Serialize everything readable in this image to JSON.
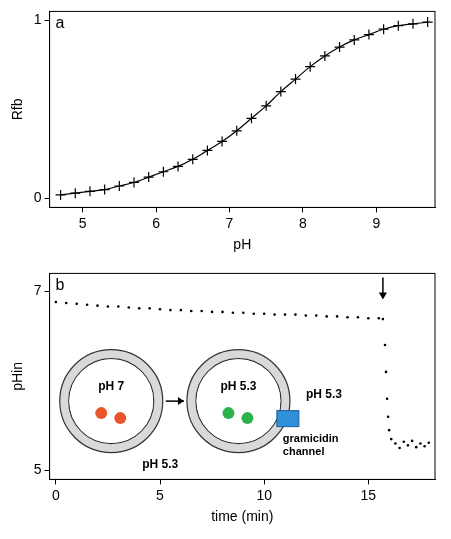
{
  "chart_data": [
    {
      "type": "line",
      "panel": "a",
      "x_label": "pH",
      "y_label": "Rfb",
      "x": [
        4.7,
        4.9,
        5.1,
        5.3,
        5.5,
        5.7,
        5.9,
        6.1,
        6.3,
        6.5,
        6.7,
        6.9,
        7.1,
        7.3,
        7.5,
        7.7,
        7.9,
        8.1,
        8.3,
        8.5,
        8.7,
        8.9,
        9.1,
        9.3,
        9.5,
        9.7
      ],
      "series": [
        {
          "color": "#000000",
          "marker": "cross",
          "line_style": "solid",
          "values": [
            0.02,
            0.03,
            0.04,
            0.05,
            0.07,
            0.09,
            0.12,
            0.15,
            0.18,
            0.22,
            0.27,
            0.32,
            0.38,
            0.45,
            0.52,
            0.6,
            0.67,
            0.74,
            0.8,
            0.85,
            0.89,
            0.92,
            0.95,
            0.97,
            0.98,
            0.99
          ]
        }
      ],
      "xlim": [
        4.55,
        9.8
      ],
      "xticks": [
        5,
        6,
        7,
        8,
        9
      ],
      "ylim": [
        -0.05,
        1.05
      ],
      "yticks": [
        0,
        1
      ],
      "grid": false
    },
    {
      "type": "scatter",
      "panel": "b",
      "x_label": "time (min)",
      "y_label": "pHin",
      "x": [
        0,
        0.5,
        1,
        1.5,
        2,
        2.5,
        3,
        3.5,
        4,
        4.5,
        5,
        5.5,
        6,
        6.5,
        7,
        7.5,
        8,
        8.5,
        9,
        9.5,
        10,
        10.5,
        11,
        11.5,
        12,
        12.5,
        13,
        13.5,
        14,
        14.5,
        15,
        15.5,
        15.7,
        15.8,
        15.85,
        15.9,
        15.95,
        16.0,
        16.1,
        16.3,
        16.5,
        16.7,
        16.9,
        17.1,
        17.3,
        17.5,
        17.7,
        17.9
      ],
      "series": [
        {
          "color": "#000000",
          "marker": "dot",
          "line_style": "none",
          "values": [
            6.88,
            6.87,
            6.86,
            6.85,
            6.84,
            6.83,
            6.83,
            6.82,
            6.81,
            6.81,
            6.8,
            6.79,
            6.79,
            6.78,
            6.78,
            6.77,
            6.77,
            6.76,
            6.76,
            6.75,
            6.75,
            6.74,
            6.74,
            6.74,
            6.73,
            6.73,
            6.72,
            6.72,
            6.71,
            6.71,
            6.7,
            6.7,
            6.69,
            6.4,
            6.1,
            5.8,
            5.6,
            5.45,
            5.35,
            5.3,
            5.25,
            5.32,
            5.28,
            5.33,
            5.26,
            5.3,
            5.27,
            5.31
          ]
        }
      ],
      "xlim": [
        -0.3,
        18.2
      ],
      "xticks": [
        0,
        5,
        10,
        15
      ],
      "ylim": [
        4.9,
        7.2
      ],
      "yticks": [
        5,
        7
      ],
      "grid": false,
      "annotations": [
        {
          "type": "arrow",
          "x": 15.7
        }
      ],
      "inset": {
        "left": {
          "inside": "pH 7",
          "outside": "pH 5.3"
        },
        "right": {
          "inside": "pH 5.3",
          "outside": "pH 5.3",
          "channel": "gramicidin channel"
        }
      }
    }
  ]
}
